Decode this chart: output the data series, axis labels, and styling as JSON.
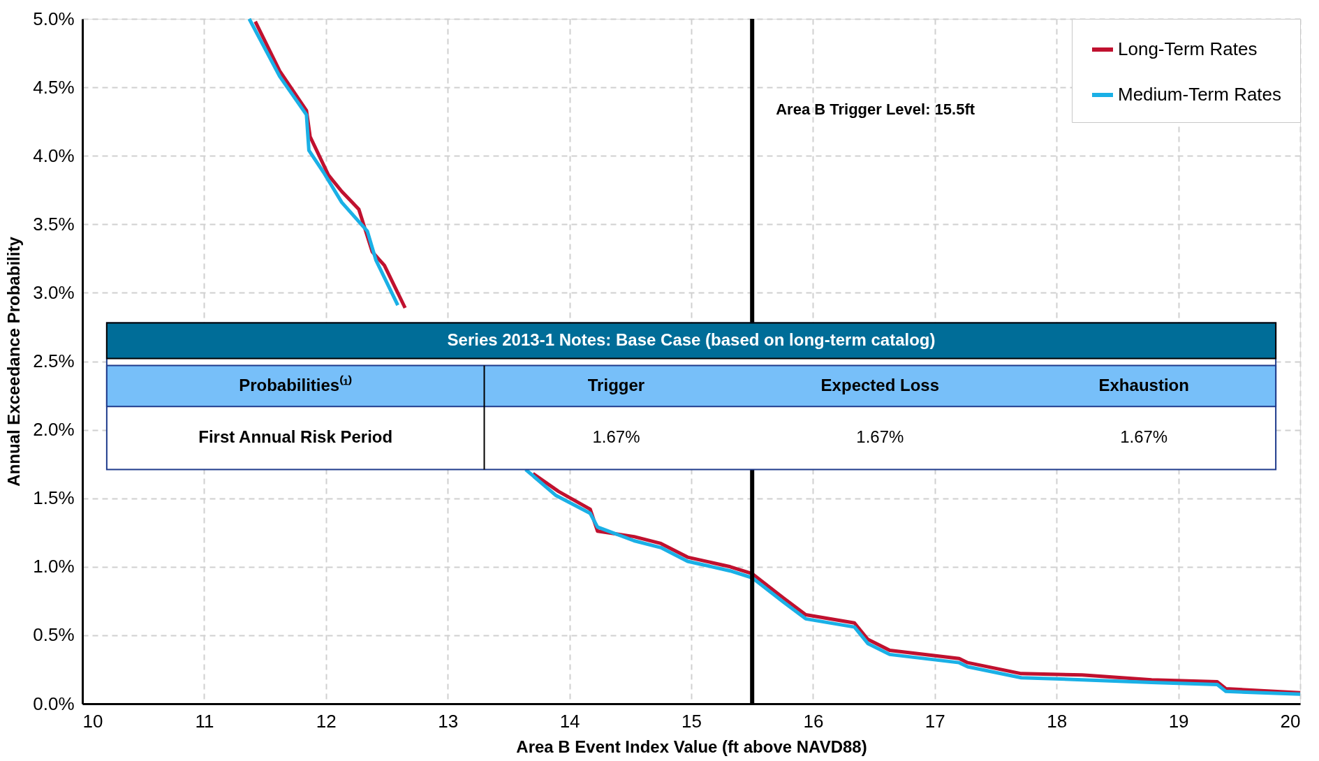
{
  "chart_data": {
    "type": "line",
    "xlabel": "Area B Event Index Value (ft above NAVD88)",
    "ylabel": "Annual Exceedance Probability",
    "xlim": [
      10,
      20
    ],
    "xticks": [
      10,
      11,
      12,
      13,
      14,
      15,
      16,
      17,
      18,
      19,
      20
    ],
    "ylim": [
      0,
      5
    ],
    "yticks": [
      {
        "value": 0,
        "label": "0.0%"
      },
      {
        "value": 0.5,
        "label": "0.5%"
      },
      {
        "value": 1,
        "label": "1.0%"
      },
      {
        "value": 1.5,
        "label": "1.5%"
      },
      {
        "value": 2,
        "label": "2.0%"
      },
      {
        "value": 2.5,
        "label": "2.5%"
      },
      {
        "value": 3,
        "label": "3.0%"
      },
      {
        "value": 3.5,
        "label": "3.5%"
      },
      {
        "value": 4,
        "label": "4.0%"
      },
      {
        "value": 4.5,
        "label": "4.5%"
      },
      {
        "value": 5,
        "label": "5.0%"
      }
    ],
    "grid": true,
    "legend": "top right",
    "line_style": "solid",
    "series": [
      {
        "name": "Long-Term Rates",
        "color": "#c0112f",
        "x": [
          11.42,
          11.62,
          11.84,
          11.87,
          12.02,
          12.13,
          12.27,
          12.38,
          12.48,
          12.65,
          13.2,
          13.7,
          13.91,
          14.17,
          14.23,
          14.53,
          14.75,
          14.97,
          15.32,
          15.5,
          15.76,
          15.94,
          16.34,
          16.45,
          16.63,
          17.2,
          17.27,
          17.71,
          18.21,
          18.78,
          19.32,
          19.39,
          20
        ],
        "values": [
          4.98,
          4.62,
          4.33,
          4.14,
          3.86,
          3.74,
          3.61,
          3.3,
          3.2,
          2.89,
          null,
          1.68,
          1.55,
          1.42,
          1.26,
          1.22,
          1.17,
          1.07,
          1.0,
          0.95,
          0.77,
          0.65,
          0.59,
          0.47,
          0.39,
          0.33,
          0.3,
          0.22,
          0.21,
          0.175,
          0.16,
          0.11,
          0.08
        ]
      },
      {
        "name": "Medium-Term Rates",
        "color": "#1ab0e6",
        "x": [
          11.37,
          11.62,
          11.84,
          11.86,
          11.98,
          12.13,
          12.34,
          12.41,
          12.59,
          13.2,
          13.64,
          13.89,
          14.17,
          14.23,
          14.53,
          14.75,
          14.97,
          15.32,
          15.5,
          15.76,
          15.94,
          16.34,
          16.45,
          16.63,
          17.2,
          17.27,
          17.71,
          18.21,
          18.78,
          19.32,
          19.39,
          20
        ],
        "values": [
          5.0,
          4.58,
          4.3,
          4.04,
          3.88,
          3.66,
          3.45,
          3.24,
          2.91,
          null,
          1.71,
          1.52,
          1.39,
          1.29,
          1.19,
          1.14,
          1.04,
          0.97,
          0.92,
          0.74,
          0.62,
          0.56,
          0.44,
          0.36,
          0.3,
          0.27,
          0.19,
          0.175,
          0.155,
          0.14,
          0.09,
          0.07
        ]
      }
    ],
    "ref_lines": [
      {
        "axis": "x",
        "value": 15.5,
        "label": "Area B Trigger Level: 15.5ft",
        "color": "#000000"
      }
    ],
    "annotations": [
      "Series 2013-1 Notes: Base Case (based on long-term catalog)",
      "Probabilities⁽¹⁾",
      "Trigger",
      "Expected Loss",
      "Exhaustion",
      "First Annual Risk Period",
      "1.67%",
      "1.67%",
      "1.67%"
    ]
  }
}
